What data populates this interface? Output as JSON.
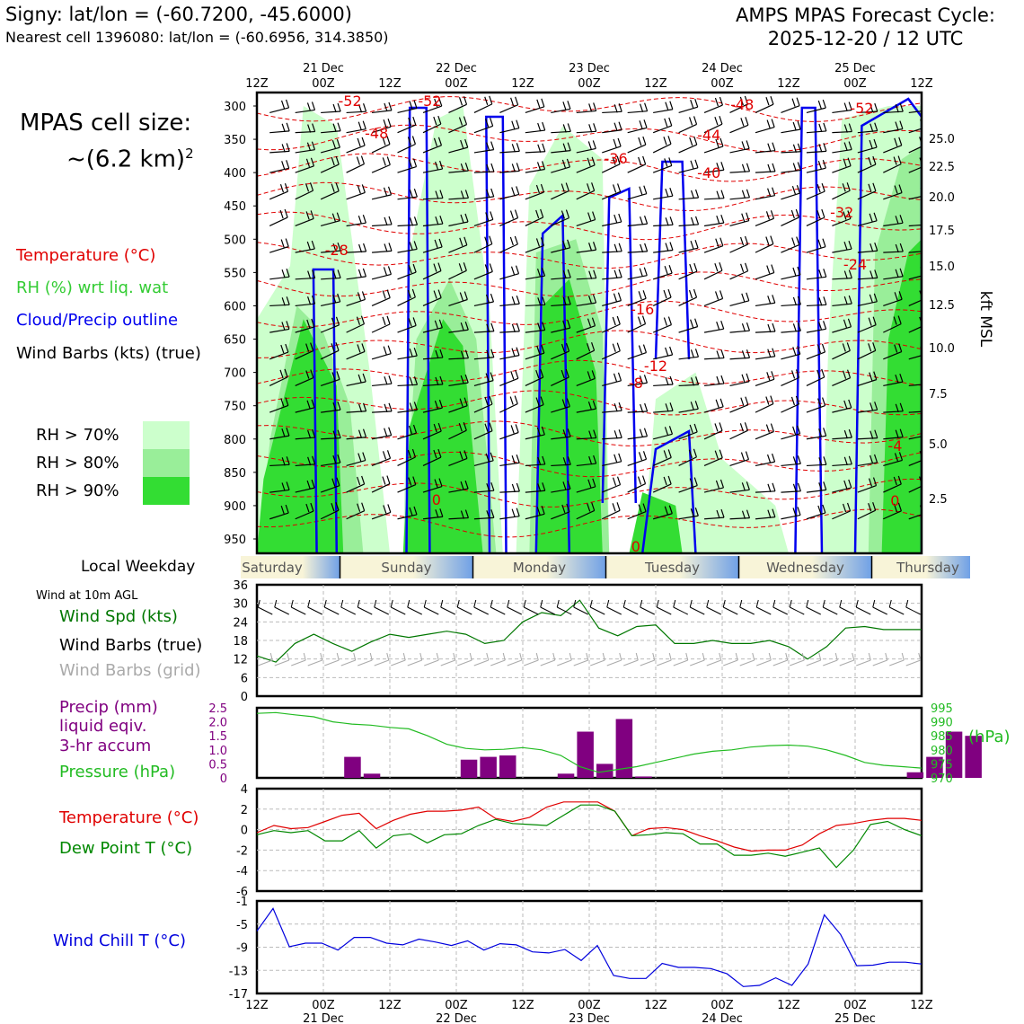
{
  "header": {
    "location": "Signy: lat/lon = (-60.7200, -45.6000)",
    "nearest_cell": "Nearest cell 1396080: lat/lon = (-60.6956, 314.3850)",
    "title_line1": "AMPS MPAS Forecast Cycle:",
    "title_line2": "2025-12-20 / 12 UTC"
  },
  "cell_size": {
    "line1": "MPAS cell size:",
    "line2": "~(6.2 km)",
    "exp": "2"
  },
  "legend_upper": {
    "temperature": "Temperature (°C)",
    "rh": "RH (%) wrt liq. wat",
    "cloud": "Cloud/Precip outline",
    "wind": "Wind Barbs (kts) (true)",
    "rh70": "RH > 70%",
    "rh80": "RH > 80%",
    "rh90": "RH > 90%"
  },
  "colors": {
    "temperature": "#e00000",
    "rh_label": "#33cc33",
    "cloud": "#0000ee",
    "rh70": "#ccffcc",
    "rh80": "#99ee99",
    "rh90": "#33dd33",
    "wind_spd": "#007700",
    "wind_grid": "#aaaaaa",
    "precip": "#800080",
    "pressure": "#22bb22",
    "dewpoint": "#008800",
    "wind_chill": "#0000dd"
  },
  "time_axis": {
    "top_labels": [
      "12Z",
      "00Z",
      "12Z",
      "00Z",
      "12Z",
      "00Z",
      "12Z",
      "00Z",
      "12Z",
      "00Z",
      "12Z"
    ],
    "day_labels": [
      "21 Dec",
      "22 Dec",
      "23 Dec",
      "24 Dec",
      "25 Dec"
    ]
  },
  "weekday": {
    "label": "Local Weekday",
    "days": [
      "Saturday",
      "Sunday",
      "Monday",
      "Tuesday",
      "Wednesday",
      "Thursday"
    ]
  },
  "upper_panel": {
    "pressure_ticks": [
      "300",
      "350",
      "400",
      "450",
      "500",
      "550",
      "600",
      "650",
      "700",
      "750",
      "800",
      "850",
      "900",
      "950"
    ],
    "kft_ticks": [
      "25.0",
      "22.5",
      "20.0",
      "17.5",
      "15.0",
      "12.5",
      "10.0",
      "7.5",
      "5.0",
      "2.5"
    ],
    "kft_label": "kft MSL",
    "temp_labels": [
      "-52",
      "-52",
      "-48",
      "-48",
      "-44",
      "-40",
      "-36",
      "-52",
      "-32",
      "-28",
      "-24",
      "-16",
      "-12",
      "-8",
      "-4",
      "0",
      "0",
      "0"
    ]
  },
  "chart_data": [
    {
      "type": "line",
      "title": "Wind at 10m AGL",
      "ylim": [
        0,
        36
      ],
      "yticks": [
        "36",
        "30",
        "24",
        "18",
        "12",
        "6",
        "0"
      ],
      "legend": [
        "Wind Spd (kts)",
        "Wind Barbs (true)",
        "Wind Barbs (grid)"
      ],
      "series": [
        {
          "name": "Wind Spd (kts)",
          "values": [
            13,
            11,
            17,
            20,
            17,
            14.5,
            17.5,
            20,
            19,
            20,
            21,
            20,
            17,
            18,
            24,
            27,
            26,
            31,
            22,
            19.5,
            22.5,
            23,
            17,
            17,
            18,
            17,
            17,
            18,
            16,
            12,
            16,
            22,
            22.5,
            21.5,
            21.5,
            21.5
          ]
        }
      ]
    },
    {
      "type": "bar",
      "title": "Precip / Pressure",
      "legend": [
        "Precip (mm)",
        "liquid eqiv.",
        "3-hr accum",
        "Pressure (hPa)"
      ],
      "ylim": [
        0,
        2.5
      ],
      "yticks": [
        "2.5",
        "2.0",
        "1.5",
        "1.0",
        "0.5",
        "0"
      ],
      "pressure_ylim": [
        970,
        995
      ],
      "pressure_yticks": [
        "995",
        "990",
        "985",
        "980",
        "975",
        "970"
      ],
      "pressure_unit": "(hPa)",
      "series": [
        {
          "name": "Precip (mm)",
          "values": [
            0,
            0,
            0,
            0,
            0.75,
            0.15,
            0,
            0,
            0,
            0,
            0.65,
            0.75,
            0.8,
            0,
            0,
            0.15,
            1.65,
            0.5,
            2.1,
            0.05,
            0,
            0,
            0,
            0,
            0,
            0,
            0,
            0,
            0,
            0,
            0,
            0,
            0,
            0.2,
            0.75,
            1.65,
            1.5
          ]
        },
        {
          "name": "Pressure (hPa)",
          "values": [
            993,
            993.3,
            992.5,
            991.8,
            990,
            989.2,
            988.8,
            988,
            987.5,
            985,
            982,
            980.5,
            980,
            980.2,
            980.8,
            980,
            978,
            974,
            972,
            973,
            974,
            975.5,
            977,
            978.5,
            979.5,
            980,
            981,
            981.5,
            981.7,
            981.3,
            980,
            978,
            975.5,
            974.5,
            974,
            973.5
          ]
        }
      ]
    },
    {
      "type": "line",
      "title": "Temperature / Dew Point",
      "ylim": [
        -6,
        4
      ],
      "yticks": [
        "4",
        "2",
        "0",
        "-2",
        "-4",
        "-6"
      ],
      "legend": [
        "Temperature (°C)",
        "Dew Point T (°C)"
      ],
      "series": [
        {
          "name": "Temperature (°C)",
          "values": [
            -0.3,
            0.4,
            0.1,
            0.2,
            0.8,
            1.4,
            1.6,
            0.1,
            0.9,
            1.5,
            1.8,
            1.8,
            1.9,
            2.2,
            1.1,
            0.8,
            1.2,
            2.2,
            2.7,
            2.7,
            2.7,
            1.8,
            -0.6,
            0.1,
            0.2,
            0.0,
            -0.6,
            -1.1,
            -1.7,
            -2.1,
            -2.0,
            -2.0,
            -1.5,
            -0.4,
            0.4,
            0.6,
            0.9,
            1.1,
            1.1,
            0.9
          ]
        },
        {
          "name": "Dew Point T (°C)",
          "values": [
            -0.5,
            -0.1,
            -0.3,
            -0.1,
            -1.1,
            -1.1,
            -0.1,
            -1.8,
            -0.6,
            -0.4,
            -1.3,
            -0.5,
            -0.4,
            0.4,
            1.0,
            0.6,
            0.5,
            0.4,
            1.4,
            2.4,
            2.4,
            1.8,
            -0.6,
            -0.5,
            -0.3,
            -0.4,
            -1.4,
            -1.4,
            -2.5,
            -2.5,
            -2.3,
            -2.6,
            -2.2,
            -1.8,
            -3.7,
            -2.0,
            0.5,
            0.8,
            0.0,
            -0.6
          ]
        }
      ]
    },
    {
      "type": "line",
      "title": "Wind Chill",
      "ylim": [
        -17,
        -1
      ],
      "yticks": [
        "-1",
        "-5",
        "-9",
        "-13",
        "-17"
      ],
      "legend": [
        "Wind Chill T (°C)"
      ],
      "series": [
        {
          "name": "Wind Chill T (°C)",
          "values": [
            -6.2,
            -2.3,
            -8.9,
            -8.3,
            -8.3,
            -9.5,
            -7.3,
            -7.3,
            -8.3,
            -8.6,
            -7.6,
            -8.1,
            -8.7,
            -7.9,
            -9.5,
            -8.4,
            -8.6,
            -9.8,
            -10,
            -9.4,
            -11.3,
            -8.7,
            -13.9,
            -14.4,
            -14.4,
            -11.8,
            -12.5,
            -12.5,
            -12.7,
            -13.6,
            -15.8,
            -15.6,
            -14.3,
            -15.6,
            -11.9,
            -3.4,
            -6.8,
            -12.2,
            -12.1,
            -11.6,
            -11.6,
            -11.9
          ]
        }
      ]
    }
  ],
  "lower_legends": {
    "wind_caption": "Wind at 10m AGL",
    "wind_spd": "Wind Spd (kts)",
    "wind_true": "Wind Barbs (true)",
    "wind_grid": "Wind Barbs (grid)",
    "precip1": "Precip (mm)",
    "precip2": "liquid eqiv.",
    "precip3": "3-hr accum",
    "pressure": "Pressure (hPa)",
    "temperature": "Temperature (°C)",
    "dewpoint": "Dew Point T (°C)",
    "windchill": "Wind Chill T (°C)"
  }
}
